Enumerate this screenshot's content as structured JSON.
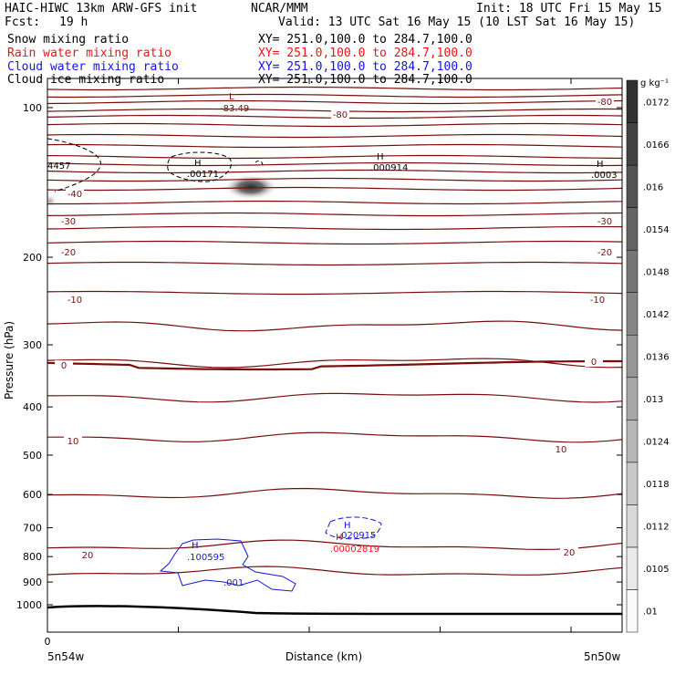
{
  "header": {
    "title": "HAIC-HIWC 13km ARW-GFS init",
    "org": "NCAR/MMM",
    "init": "Init: 18 UTC Fri 15 May 15",
    "fcst_label": "Fcst:",
    "fcst_value": "19 h",
    "valid": "Valid: 13 UTC Sat 16 May 15 (10 LST Sat 16 May 15)"
  },
  "fields": [
    {
      "name": "Snow mixing ratio",
      "xy": "XY= 251.0,100.0 to 284.7,100.0",
      "color": "#000000"
    },
    {
      "name": "Rain water mixing ratio",
      "xy": "XY= 251.0,100.0 to 284.7,100.0",
      "color": "#e8141c"
    },
    {
      "name": "Cloud water mixing ratio",
      "xy": "XY= 251.0,100.0 to 284.7,100.0",
      "color": "#1414dc"
    },
    {
      "name": "Cloud ice mixing ratio",
      "xy": "XY= 251.0,100.0 to 284.7,100.0",
      "color": "#000000"
    }
  ],
  "colors": {
    "temperature": "#7a0c0c",
    "cloud_water": "#1414dc",
    "rain": "#e8141c",
    "terrain": "#000000"
  },
  "chart_data": {
    "type": "cross-section",
    "ylabel": "Pressure (hPa)",
    "xlabel": "Distance (km)",
    "y_scale": "log-pressure",
    "ylim": [
      1050,
      50
    ],
    "y_ticks": [
      100,
      200,
      300,
      400,
      500,
      600,
      700,
      800,
      900,
      1000
    ],
    "x_ticks": [
      "0"
    ],
    "x_left_label": "5n54w",
    "x_right_label": "5n50w",
    "colorbar": {
      "unit": "g kg⁻¹",
      "levels": [
        ".01",
        ".0105",
        ".0112",
        ".0118",
        ".0124",
        ".013",
        ".0136",
        ".0142",
        ".0148",
        ".0154",
        ".016",
        ".0166",
        ".0172"
      ]
    },
    "temperature_contours": [
      {
        "value": -80,
        "labels": [
          "-80",
          "-80"
        ]
      },
      {
        "value": -40,
        "labels": [
          "-40"
        ]
      },
      {
        "value": -30,
        "labels": [
          "-30",
          "-30"
        ]
      },
      {
        "value": -20,
        "labels": [
          "-20",
          "-20"
        ]
      },
      {
        "value": -10,
        "labels": [
          "-10",
          "-10"
        ]
      },
      {
        "value": 0,
        "labels": [
          "0",
          "0"
        ]
      },
      {
        "value": 10,
        "labels": [
          "10",
          "10"
        ]
      },
      {
        "value": 20,
        "labels": [
          "20",
          "20"
        ]
      }
    ],
    "annotations": [
      {
        "symbol": "L",
        "value": "-83.49",
        "color": "temperature"
      },
      {
        "symbol": "",
        "value": "4457",
        "color": "terrain"
      },
      {
        "symbol": "H",
        "value": ".00171",
        "color": "terrain"
      },
      {
        "symbol": "H",
        "value": ".000914",
        "color": "terrain"
      },
      {
        "symbol": "H",
        "value": ".0003",
        "color": "terrain"
      },
      {
        "symbol": "H",
        "value": ".100595",
        "color": "cloud_water"
      },
      {
        "symbol": "",
        "value": ".001",
        "color": "cloud_water"
      },
      {
        "symbol": "H",
        "value": ".020915",
        "color": "cloud_water"
      },
      {
        "symbol": "H",
        "value": ".00002819",
        "color": "rain"
      }
    ]
  }
}
